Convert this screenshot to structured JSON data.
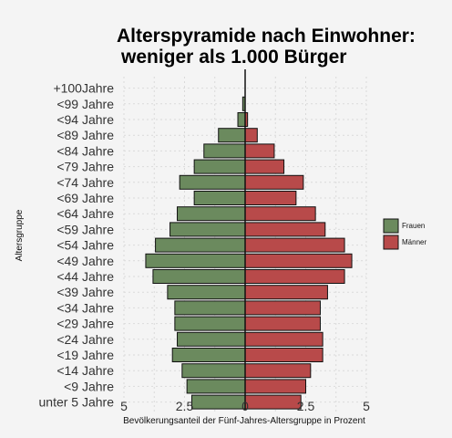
{
  "chart_data": {
    "type": "bar",
    "orientation": "horizontal-pyramid",
    "title_line1": "Alterspyramide nach Einwohner:",
    "title_line2": "weniger als 1.000 Bürger",
    "xlabel": "Bevölkerungsanteil der Fünf-Jahres-Altersgruppe in Prozent",
    "ylabel": "Altersgruppe",
    "xlim": [
      -5,
      5
    ],
    "xticks": [
      -5,
      -2.5,
      0,
      2.5,
      5
    ],
    "xtick_labels": [
      "5",
      "2.5",
      "0",
      "2.5",
      "5"
    ],
    "categories": [
      "unter 5 Jahre",
      "<9 Jahre",
      "<14 Jahre",
      "<19 Jahre",
      "<24 Jahre",
      "<29 Jahre",
      "<34 Jahre",
      "<39 Jahre",
      "<44 Jahre",
      "<49 Jahre",
      "<54 Jahre",
      "<59 Jahre",
      "<64 Jahre",
      "<69 Jahre",
      "<74 Jahre",
      "<79 Jahre",
      "<84 Jahre",
      "<89 Jahre",
      "<94 Jahre",
      "<99 Jahre",
      "+100Jahre"
    ],
    "series": [
      {
        "name": "Frauen",
        "color": "#6b8a5e",
        "values": [
          2.2,
          2.4,
          2.6,
          3.0,
          2.8,
          2.9,
          2.9,
          3.2,
          3.8,
          4.1,
          3.7,
          3.1,
          2.8,
          2.1,
          2.7,
          2.1,
          1.7,
          1.1,
          0.3,
          0.1,
          0.0
        ]
      },
      {
        "name": "Männer",
        "color": "#b84a4a",
        "values": [
          2.3,
          2.5,
          2.7,
          3.2,
          3.2,
          3.1,
          3.1,
          3.4,
          4.1,
          4.4,
          4.1,
          3.3,
          2.9,
          2.1,
          2.4,
          1.6,
          1.2,
          0.5,
          0.1,
          0.0,
          0.0
        ]
      }
    ],
    "grid": true,
    "legend_position": "right"
  }
}
